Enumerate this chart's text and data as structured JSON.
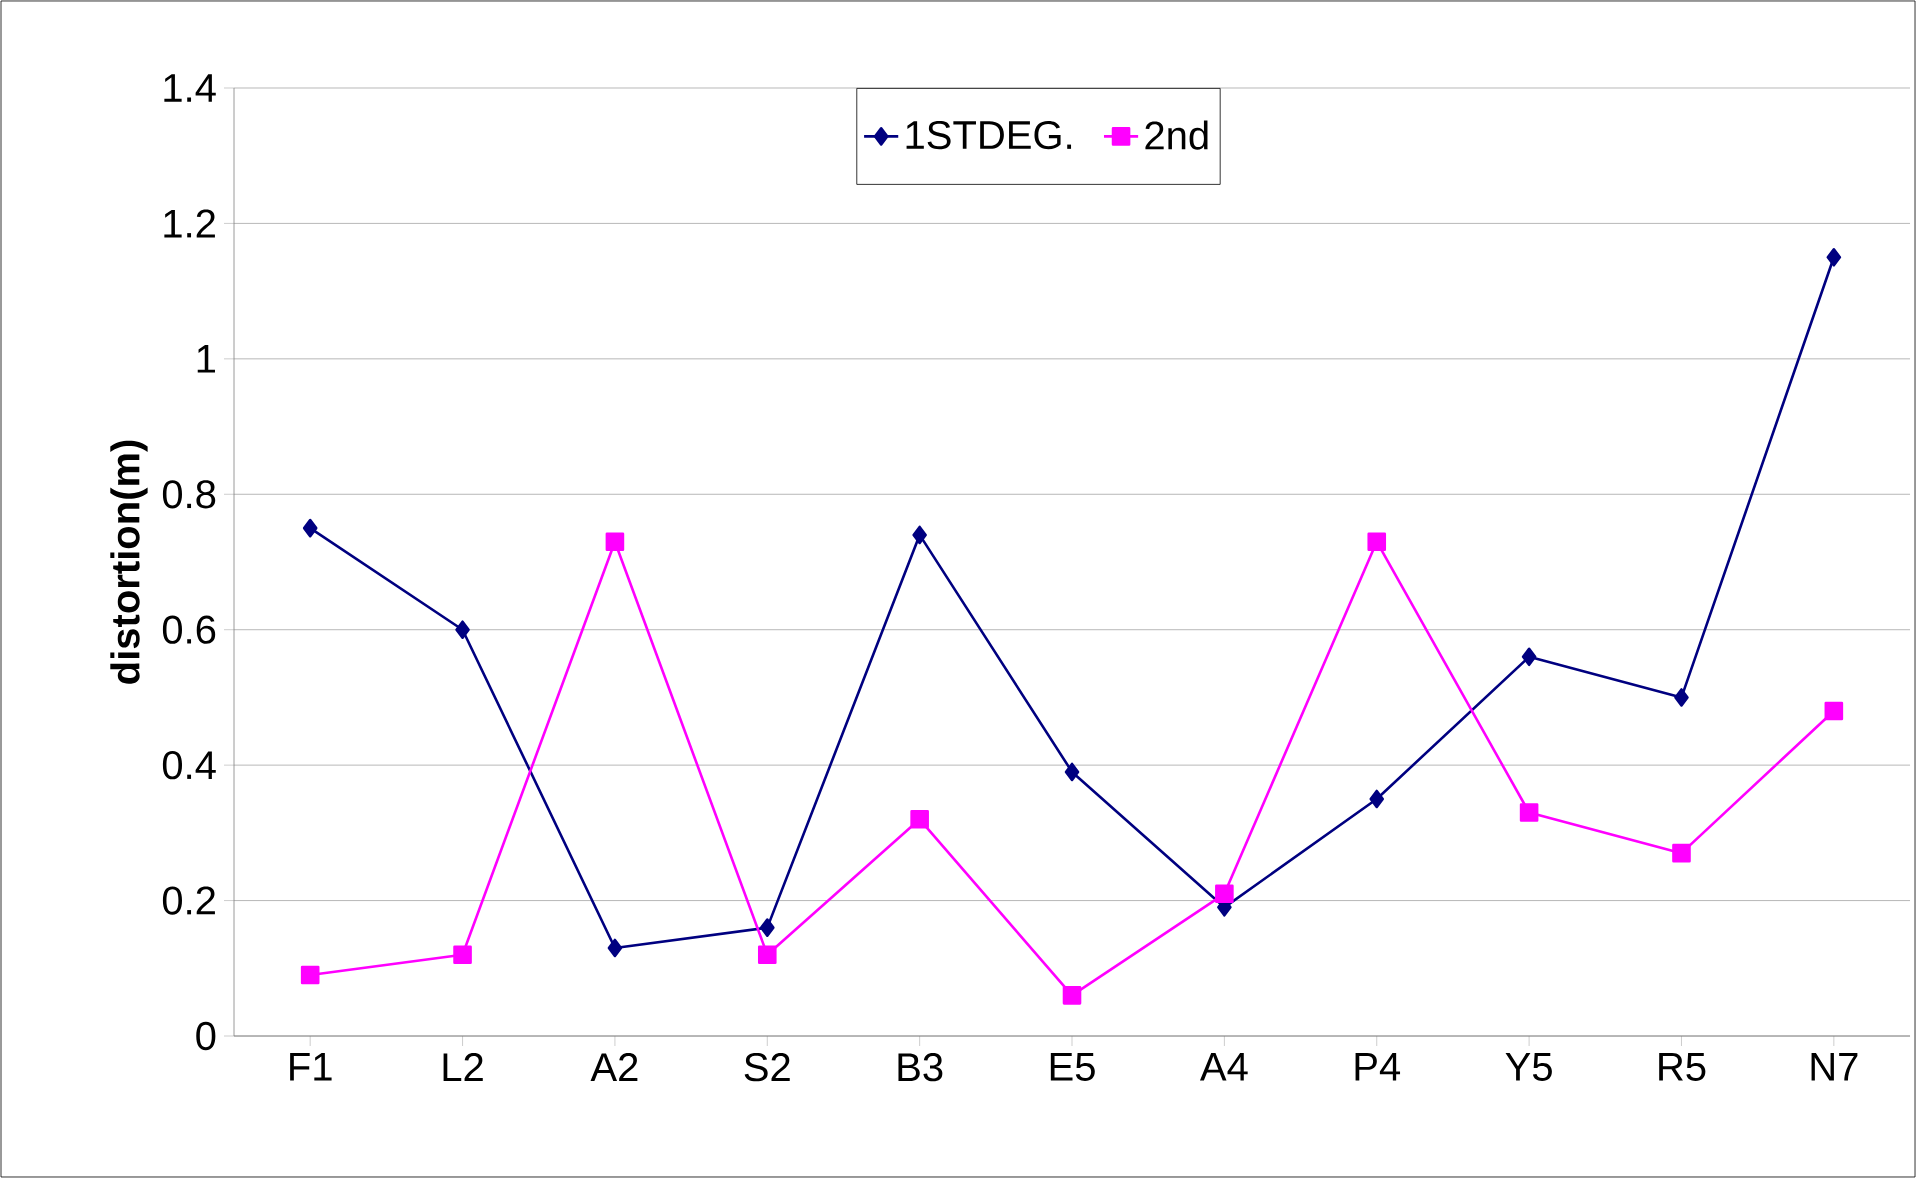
{
  "chart_data": {
    "type": "line",
    "ylabel": "distortion(m)",
    "categories": [
      "F1",
      "L2",
      "A2",
      "S2",
      "B3",
      "E5",
      "A4",
      "P4",
      "Y5",
      "R5",
      "N7"
    ],
    "series": [
      {
        "name": "1STDEG.",
        "color": "#000080",
        "marker": "diamond",
        "values": [
          0.75,
          0.6,
          0.13,
          0.16,
          0.74,
          0.39,
          0.19,
          0.35,
          0.56,
          0.5,
          1.15
        ]
      },
      {
        "name": "2nd",
        "color": "#ff00ff",
        "marker": "square",
        "values": [
          0.09,
          0.12,
          0.73,
          0.12,
          0.32,
          0.06,
          0.21,
          0.73,
          0.33,
          0.27,
          0.48
        ]
      }
    ],
    "ylim": [
      0,
      1.4
    ],
    "yticks": [
      0,
      0.2,
      0.4,
      0.6,
      0.8,
      1,
      1.2,
      1.4
    ],
    "grid": "y",
    "legend": "top",
    "line_style": "solid"
  }
}
